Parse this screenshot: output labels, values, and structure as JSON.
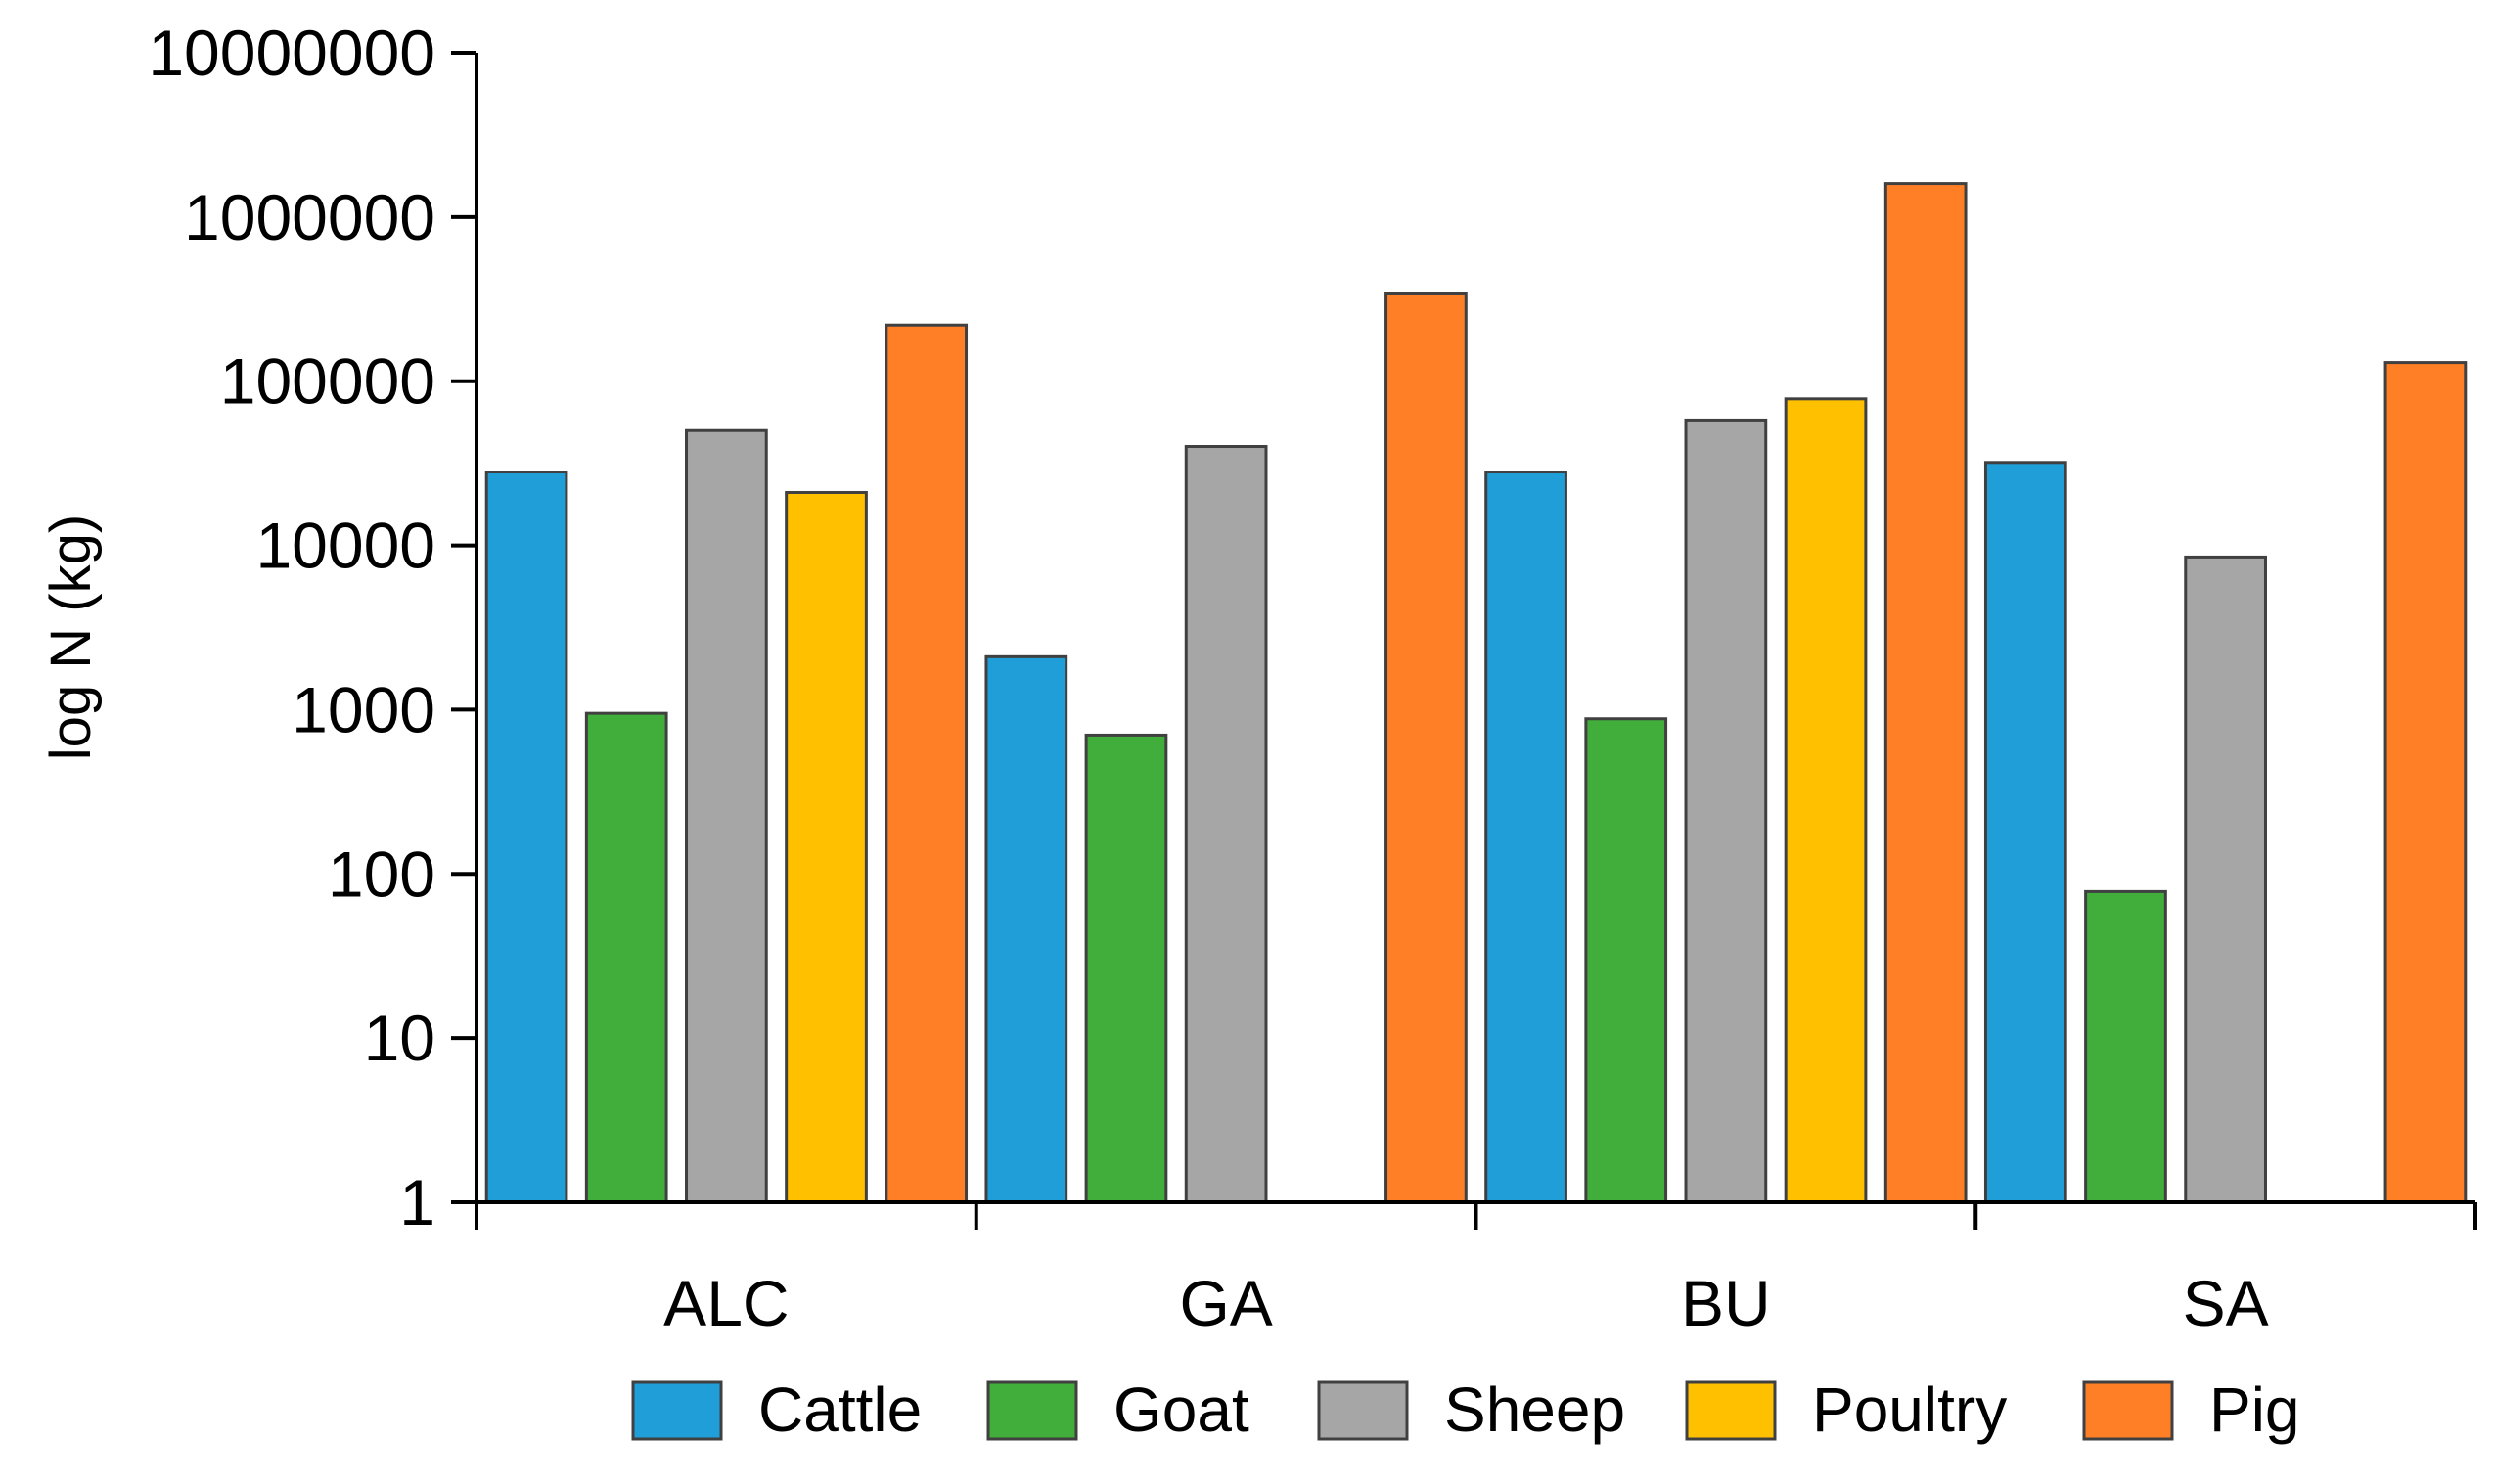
{
  "chart_data": {
    "type": "bar",
    "title": "",
    "xlabel": "",
    "ylabel": "log N (kg)",
    "yscale": "log",
    "ylim": [
      1,
      10000000
    ],
    "yticks": [
      1,
      10,
      100,
      1000,
      10000,
      100000,
      1000000,
      10000000
    ],
    "ytick_labels": [
      "1",
      "10",
      "100",
      "1000",
      "10000",
      "100000",
      "1000000",
      "10000000"
    ],
    "categories": [
      "ALC",
      "GA",
      "BU",
      "SA"
    ],
    "series": [
      {
        "name": "Cattle",
        "color": "#1F9ED8",
        "values": [
          28000,
          2100,
          28000,
          32000
        ]
      },
      {
        "name": "Goat",
        "color": "#41AD3A",
        "values": [
          950,
          700,
          880,
          78
        ]
      },
      {
        "name": "Sheep",
        "color": "#A6A6A6",
        "values": [
          50000,
          40000,
          58000,
          8500
        ]
      },
      {
        "name": "Poultry",
        "color": "#FFC000",
        "values": [
          21000,
          null,
          78000,
          null
        ]
      },
      {
        "name": "Pig",
        "color": "#FF7F27",
        "values": [
          220000,
          340000,
          1600000,
          130000
        ]
      }
    ],
    "legend": {
      "position": "bottom",
      "entries": [
        "Cattle",
        "Goat",
        "Sheep",
        "Poultry",
        "Pig"
      ]
    },
    "grid": false
  }
}
